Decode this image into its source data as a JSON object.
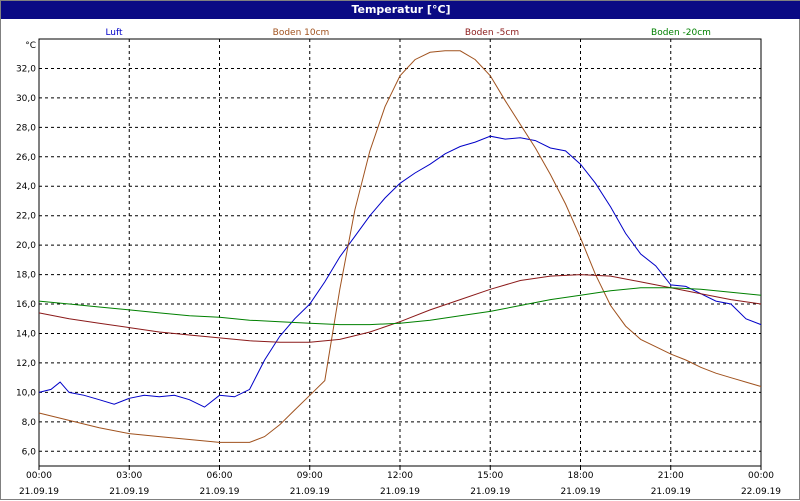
{
  "window": {
    "title": "Temperatur [°C]"
  },
  "colors": {
    "background": "#ffffff",
    "titlebar": "#0a0a84",
    "grid": "#000000"
  },
  "chart_data": {
    "type": "line",
    "title": "Temperatur [°C]",
    "ylabel": "°C",
    "ylim": [
      5.0,
      34.0
    ],
    "y_ticks": [
      "6,0",
      "8,0",
      "10,0",
      "12,0",
      "14,0",
      "16,0",
      "18,0",
      "20,0",
      "22,0",
      "24,0",
      "26,0",
      "28,0",
      "30,0",
      "32,0"
    ],
    "y_tick_values": [
      6,
      8,
      10,
      12,
      14,
      16,
      18,
      20,
      22,
      24,
      26,
      28,
      30,
      32
    ],
    "x_range_hours": [
      0,
      24
    ],
    "x_ticks": [
      {
        "time": "00:00",
        "date": "21.09.19"
      },
      {
        "time": "03:00",
        "date": "21.09.19"
      },
      {
        "time": "06:00",
        "date": "21.09.19"
      },
      {
        "time": "09:00",
        "date": "21.09.19"
      },
      {
        "time": "12:00",
        "date": "21.09.19"
      },
      {
        "time": "15:00",
        "date": "21.09.19"
      },
      {
        "time": "18:00",
        "date": "21.09.19"
      },
      {
        "time": "21:00",
        "date": "21.09.19"
      },
      {
        "time": "00:00",
        "date": "22.09.19"
      }
    ],
    "grid": true,
    "legend_position": "top",
    "series": [
      {
        "name": "Luft",
        "color": "#0000c8",
        "x": [
          0,
          0.4,
          0.7,
          1.0,
          1.5,
          2.0,
          2.5,
          3.0,
          3.5,
          4.0,
          4.5,
          5.0,
          5.5,
          6.0,
          6.5,
          7.0,
          7.5,
          8.0,
          8.5,
          9.0,
          9.5,
          10.0,
          10.5,
          11.0,
          11.5,
          12.0,
          12.5,
          13.0,
          13.5,
          14.0,
          14.5,
          15.0,
          15.5,
          16.0,
          16.5,
          17.0,
          17.5,
          18.0,
          18.5,
          19.0,
          19.5,
          20.0,
          20.5,
          21.0,
          21.5,
          22.0,
          22.5,
          23.0,
          23.5,
          24.0
        ],
        "values": [
          10.0,
          10.2,
          10.7,
          10.0,
          9.8,
          9.5,
          9.2,
          9.6,
          9.8,
          9.7,
          9.8,
          9.5,
          9.0,
          9.8,
          9.7,
          10.2,
          12.2,
          13.8,
          15.0,
          16.0,
          17.5,
          19.2,
          20.6,
          22.0,
          23.2,
          24.2,
          24.9,
          25.5,
          26.2,
          26.7,
          27.0,
          27.4,
          27.2,
          27.3,
          27.1,
          26.6,
          26.4,
          25.5,
          24.2,
          22.6,
          20.8,
          19.4,
          18.6,
          17.3,
          17.2,
          16.7,
          16.2,
          16.0,
          15.0,
          14.6
        ]
      },
      {
        "name": "Boden 10cm",
        "color": "#a0521e",
        "x": [
          0,
          1,
          2,
          3,
          4,
          5,
          6,
          7,
          7.5,
          8,
          8.5,
          9,
          9.5,
          10,
          10.5,
          11,
          11.5,
          12,
          12.5,
          13,
          13.5,
          14,
          14.5,
          15,
          15.5,
          16,
          16.5,
          17,
          17.5,
          18,
          18.5,
          19,
          19.5,
          20,
          20.5,
          21,
          21.5,
          22,
          22.5,
          23,
          23.5,
          24
        ],
        "values": [
          8.6,
          8.1,
          7.6,
          7.2,
          7.0,
          6.8,
          6.6,
          6.6,
          7.0,
          7.8,
          8.8,
          9.8,
          10.8,
          17.0,
          22.4,
          26.4,
          29.4,
          31.5,
          32.6,
          33.1,
          33.2,
          33.2,
          32.6,
          31.5,
          29.8,
          28.2,
          26.6,
          24.8,
          22.8,
          20.5,
          18.0,
          15.9,
          14.5,
          13.6,
          13.1,
          12.6,
          12.2,
          11.7,
          11.3,
          11.0,
          10.7,
          10.4
        ]
      },
      {
        "name": "Boden -5cm",
        "color": "#8b1a1a",
        "x": [
          0,
          1,
          2,
          3,
          4,
          5,
          6,
          7,
          8,
          9,
          10,
          11,
          12,
          13,
          14,
          15,
          16,
          17,
          18,
          19,
          20,
          21,
          22,
          23,
          24
        ],
        "values": [
          15.4,
          15.0,
          14.7,
          14.4,
          14.1,
          13.9,
          13.7,
          13.5,
          13.4,
          13.4,
          13.6,
          14.1,
          14.8,
          15.6,
          16.3,
          17.0,
          17.6,
          17.9,
          18.0,
          17.9,
          17.5,
          17.1,
          16.7,
          16.3,
          16.0
        ]
      },
      {
        "name": "Boden -20cm",
        "color": "#008000",
        "x": [
          0,
          1,
          2,
          3,
          4,
          5,
          6,
          7,
          8,
          9,
          10,
          11,
          12,
          13,
          14,
          15,
          16,
          17,
          18,
          19,
          20,
          21,
          22,
          23,
          24
        ],
        "values": [
          16.2,
          16.0,
          15.8,
          15.6,
          15.4,
          15.2,
          15.1,
          14.9,
          14.8,
          14.7,
          14.6,
          14.6,
          14.7,
          14.9,
          15.2,
          15.5,
          15.9,
          16.3,
          16.6,
          16.9,
          17.1,
          17.1,
          17.0,
          16.8,
          16.6
        ]
      }
    ]
  }
}
